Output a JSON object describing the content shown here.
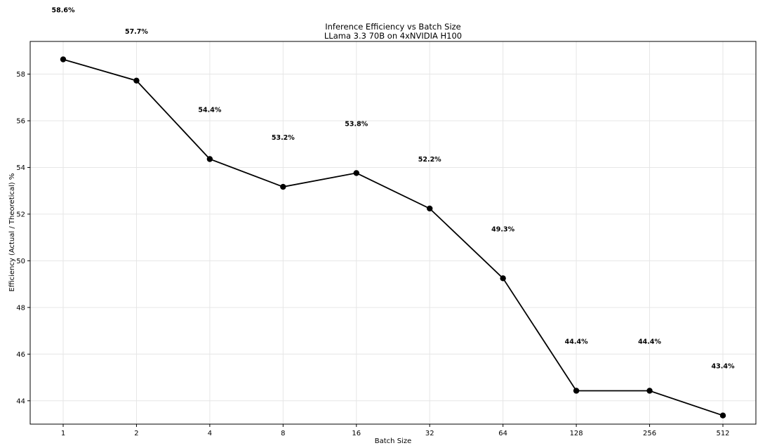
{
  "chart_data": {
    "type": "line",
    "title": "Inference Efficiency vs Batch Size",
    "subtitle": "LLama 3.3 70B on 4xNVIDIA H100",
    "xlabel": "Batch Size",
    "ylabel": "Efficiency (Actual / Theoretical) %",
    "categories": [
      "1",
      "2",
      "4",
      "8",
      "16",
      "32",
      "64",
      "128",
      "256",
      "512"
    ],
    "values": [
      58.63,
      57.72,
      54.36,
      53.17,
      53.76,
      52.24,
      49.25,
      44.43,
      44.43,
      43.37
    ],
    "data_labels": [
      "58.6%",
      "57.7%",
      "54.4%",
      "53.2%",
      "53.8%",
      "52.2%",
      "49.3%",
      "44.4%",
      "44.4%",
      "43.4%"
    ],
    "ylim": [
      43.0,
      59.4
    ],
    "yticks": [
      "44",
      "46",
      "48",
      "50",
      "52",
      "54",
      "56",
      "58"
    ],
    "grid": true,
    "line_color": "#000000"
  }
}
